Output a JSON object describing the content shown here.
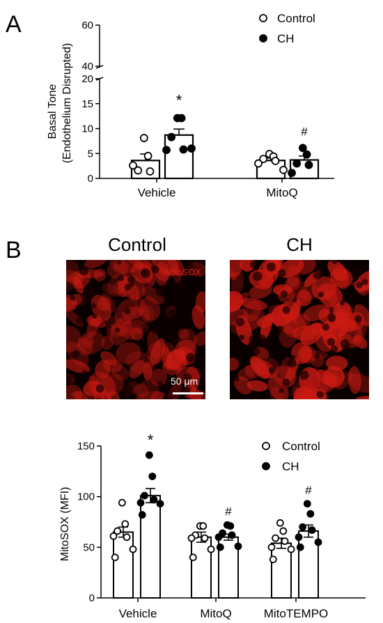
{
  "panel_a": {
    "letter": "A"
  },
  "panel_b": {
    "letter": "B"
  },
  "images": {
    "control_title": "Control",
    "ch_title": "CH",
    "stain_label": "MitoSOX",
    "scale_label": "50 μm"
  },
  "colors": {
    "stain": "#cc1a12",
    "background": "#0a0000"
  },
  "chart_data": [
    {
      "type": "bar",
      "title": "",
      "ylabel": "Basal Tone\n(Endothelium Disrupted)",
      "xlabel": "",
      "categories": [
        "Vehicle",
        "MitoQ"
      ],
      "ylim": [
        0,
        60
      ],
      "axis_break": [
        20,
        40
      ],
      "yticks_lower": [
        0,
        5,
        10,
        15,
        20
      ],
      "yticks_upper": [
        40,
        60
      ],
      "legend": {
        "placement": "top-right",
        "items": [
          "Control",
          "CH"
        ]
      },
      "series": [
        {
          "name": "Control",
          "marker": "open-circle",
          "values": [
            3.6,
            3.6
          ],
          "sem": [
            1.3,
            0.5
          ],
          "points": [
            [
              8.1,
              4.5,
              1.6,
              1.4,
              2.6
            ],
            [
              4.9,
              4.4,
              3.9,
              3.5,
              3.0,
              1.7
            ]
          ]
        },
        {
          "name": "CH",
          "marker": "filled-circle",
          "values": [
            8.7,
            3.7
          ],
          "sem": [
            1.2,
            0.8
          ],
          "points": [
            [
              12.1,
              12.1,
              8.3,
              5.8,
              5.7,
              6.0
            ],
            [
              6.1,
              4.8,
              3.0,
              2.7,
              1.1
            ]
          ]
        }
      ],
      "annotations": [
        {
          "series": "CH",
          "category": "Vehicle",
          "text": "*"
        },
        {
          "series": "CH",
          "category": "MitoQ",
          "text": "#"
        }
      ]
    },
    {
      "type": "bar",
      "title": "",
      "ylabel": "MitoSOX (MFI)",
      "xlabel": "",
      "categories": [
        "Vehicle",
        "MitoQ",
        "MitoTEMPO"
      ],
      "ylim": [
        0,
        150
      ],
      "yticks": [
        0,
        50,
        100,
        150
      ],
      "legend": {
        "placement": "top-right",
        "items": [
          "Control",
          "CH"
        ]
      },
      "series": [
        {
          "name": "Control",
          "marker": "open-circle",
          "values": [
            65,
            60,
            54
          ],
          "sem": [
            5,
            5,
            5
          ],
          "points": [
            [
              94,
              73,
              66,
              60,
              61,
              48,
              40
            ],
            [
              71,
              71,
              62,
              59,
              59,
              48,
              40
            ],
            [
              74,
              66,
              59,
              56,
              50,
              48,
              38
            ]
          ]
        },
        {
          "name": "CH",
          "marker": "filled-circle",
          "values": [
            101,
            60,
            66
          ],
          "sem": [
            7,
            3,
            6
          ],
          "points": [
            [
              141,
              120,
              101,
              97,
              94,
              93,
              82
            ],
            [
              72,
              71,
              64,
              62,
              60,
              51,
              50
            ],
            [
              93,
              83,
              70,
              67,
              60,
              55,
              50
            ]
          ]
        }
      ],
      "annotations": [
        {
          "series": "CH",
          "category": "Vehicle",
          "text": "*"
        },
        {
          "series": "CH",
          "category": "MitoQ",
          "text": "#"
        },
        {
          "series": "CH",
          "category": "MitoTEMPO",
          "text": "#"
        }
      ]
    }
  ]
}
